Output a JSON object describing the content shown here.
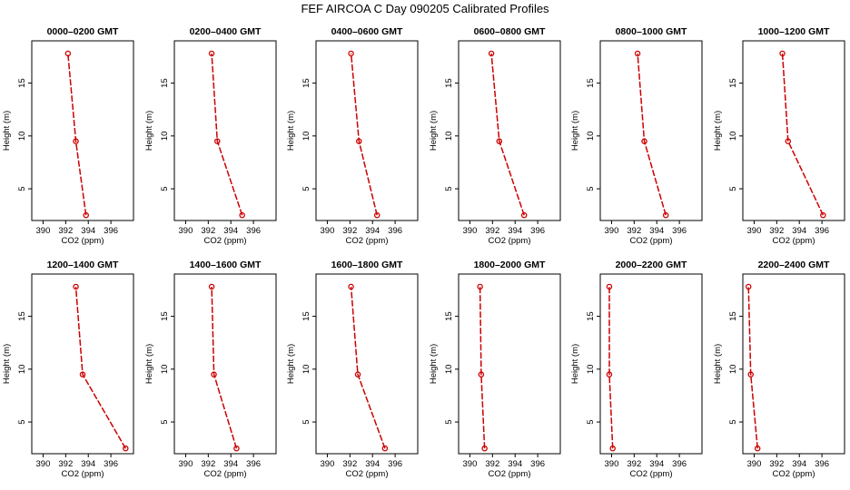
{
  "title": "FEF AIRCOA C  Day 090205  Calibrated Profiles",
  "colors": {
    "series": "#cc0000",
    "axes": "#000000",
    "background": "#ffffff"
  },
  "chart_data": {
    "type": "line",
    "grid": false,
    "xlabel": "CO2 (ppm)",
    "ylabel": "Height (m)",
    "xlim": [
      389,
      398
    ],
    "ylim": [
      2,
      19
    ],
    "xticks": [
      390,
      392,
      394,
      396
    ],
    "yticks": [
      5,
      10,
      15
    ],
    "heights": [
      2.5,
      9.5,
      17.8
    ],
    "panels": [
      {
        "title": "0000–0200 GMT",
        "co2": [
          393.8,
          392.9,
          392.2
        ]
      },
      {
        "title": "0200–0400 GMT",
        "co2": [
          395.0,
          392.8,
          392.3
        ]
      },
      {
        "title": "0400–0600 GMT",
        "co2": [
          394.4,
          392.8,
          392.1
        ]
      },
      {
        "title": "0600–0800 GMT",
        "co2": [
          394.8,
          392.6,
          391.9
        ]
      },
      {
        "title": "0800–1000 GMT",
        "co2": [
          394.8,
          392.9,
          392.3
        ]
      },
      {
        "title": "1000–1200 GMT",
        "co2": [
          396.1,
          393.0,
          392.5
        ]
      },
      {
        "title": "1200–1400 GMT",
        "co2": [
          397.3,
          393.5,
          392.9
        ]
      },
      {
        "title": "1400–1600 GMT",
        "co2": [
          394.5,
          392.5,
          392.3
        ]
      },
      {
        "title": "1600–1800 GMT",
        "co2": [
          395.1,
          392.7,
          392.1
        ]
      },
      {
        "title": "1800–2000 GMT",
        "co2": [
          391.3,
          391.0,
          390.9
        ]
      },
      {
        "title": "2000–2200 GMT",
        "co2": [
          390.1,
          389.8,
          389.8
        ]
      },
      {
        "title": "2200–2400 GMT",
        "co2": [
          390.3,
          389.7,
          389.5
        ]
      }
    ]
  }
}
